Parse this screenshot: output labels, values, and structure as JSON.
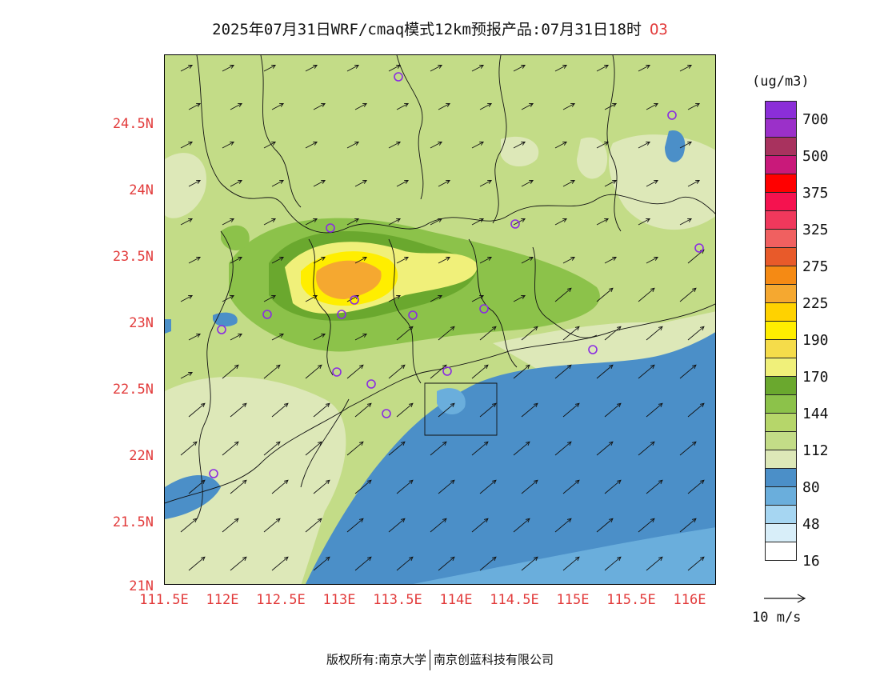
{
  "title": {
    "text": "2025年07月31日WRF/cmaq模式12km预报产品:07月31日18时",
    "species": "O3"
  },
  "map": {
    "lat_labels": [
      "24.5N",
      "24N",
      "23.5N",
      "23N",
      "22.5N",
      "22N",
      "21.5N",
      "21N"
    ],
    "lon_labels": [
      "111.5E",
      "112E",
      "112.5E",
      "113E",
      "113.5E",
      "114E",
      "114.5E",
      "115E",
      "115.5E",
      "116E"
    ],
    "sea_color": "#4b8fc8",
    "land_base_color": "#c3dc87",
    "ocean_light_color": "#6aaedc"
  },
  "legend": {
    "unit": "(ug/m3)",
    "levels": [
      {
        "color": "#8b2ed8",
        "label": "700"
      },
      {
        "color": "#9b30c9",
        "label": ""
      },
      {
        "color": "#a8325e",
        "label": "500"
      },
      {
        "color": "#c9197a",
        "label": ""
      },
      {
        "color": "#ff0000",
        "label": "375"
      },
      {
        "color": "#f5124f",
        "label": ""
      },
      {
        "color": "#f0385c",
        "label": "325"
      },
      {
        "color": "#f06060",
        "label": ""
      },
      {
        "color": "#e85a2a",
        "label": "275"
      },
      {
        "color": "#f58a14",
        "label": ""
      },
      {
        "color": "#f5a830",
        "label": "225"
      },
      {
        "color": "#ffd200",
        "label": ""
      },
      {
        "color": "#ffee00",
        "label": "190"
      },
      {
        "color": "#f5dc4a",
        "label": ""
      },
      {
        "color": "#f0f07a",
        "label": "170"
      },
      {
        "color": "#6aa82e",
        "label": ""
      },
      {
        "color": "#8cc24a",
        "label": "144"
      },
      {
        "color": "#b6d66a",
        "label": ""
      },
      {
        "color": "#c3dc87",
        "label": "112"
      },
      {
        "color": "#dde8b8",
        "label": ""
      },
      {
        "color": "#4b8fc8",
        "label": "80"
      },
      {
        "color": "#6aaedc",
        "label": ""
      },
      {
        "color": "#a6d6f2",
        "label": "48"
      },
      {
        "color": "#d8eef9",
        "label": ""
      },
      {
        "color": "#ffffff",
        "label": "16"
      }
    ]
  },
  "reference_vector": {
    "label": "10 m/s"
  },
  "copyright": {
    "left": "版权所有:南京大学",
    "right": "南京创蓝科技有限公司"
  }
}
